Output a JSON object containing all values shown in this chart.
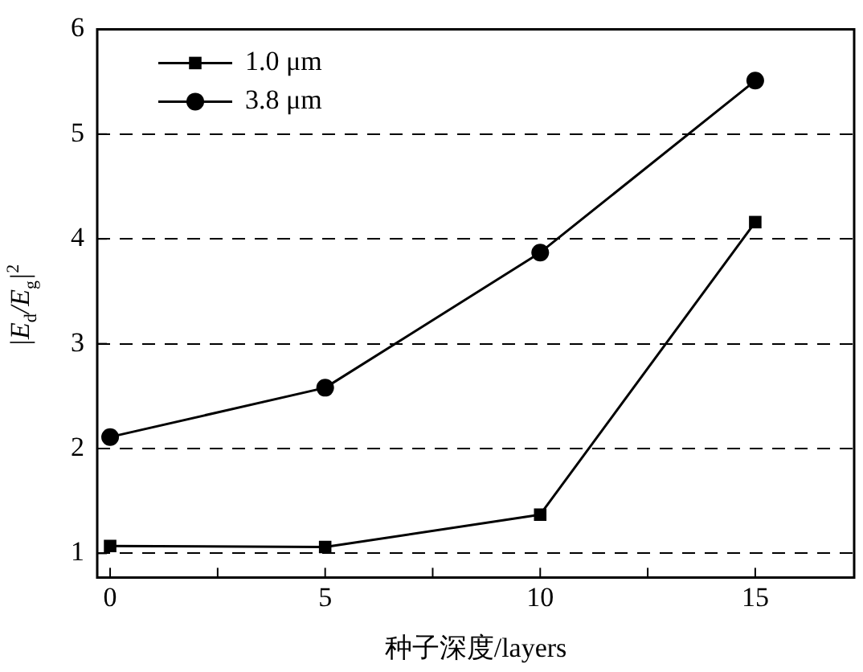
{
  "chart_data": {
    "type": "line",
    "xlabel": "种子深度/layers",
    "ylabel": "|E$_{d}$/E$_{g}$|$^{2}$",
    "x": [
      0,
      5,
      10,
      15
    ],
    "series": [
      {
        "name": "1.0 μm",
        "color": "#000000",
        "marker": "square",
        "values": [
          1.07,
          1.06,
          1.37,
          4.16
        ]
      },
      {
        "name": "3.8 μm",
        "color": "#000000",
        "marker": "circle",
        "values": [
          2.11,
          2.58,
          3.87,
          5.51
        ]
      }
    ],
    "xlim": [
      -0.3,
      17.3
    ],
    "xticks": [
      0,
      {
        "value": 2.5,
        "label": null
      },
      5,
      {
        "value": 7.5,
        "label": null
      },
      10,
      {
        "value": 12.5,
        "label": null
      },
      15
    ],
    "ylim": [
      0.77,
      6
    ],
    "yticks": [
      1,
      2,
      3,
      4,
      5,
      6
    ],
    "grid": "y",
    "line_style": "solid",
    "legend": "top left"
  }
}
